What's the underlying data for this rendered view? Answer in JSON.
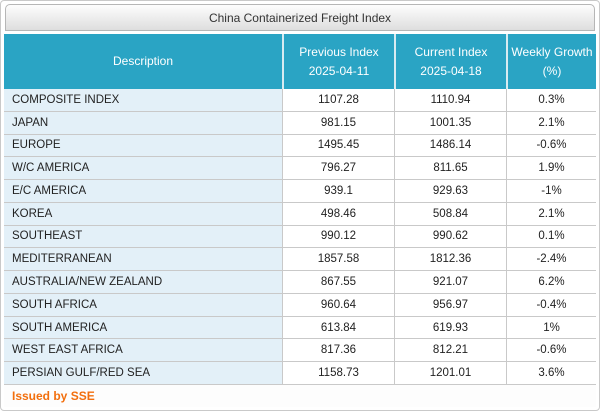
{
  "title": "China Containerized Freight Index",
  "table": {
    "columns": [
      {
        "label": "Description",
        "sub": ""
      },
      {
        "label": "Previous Index",
        "sub": "2025-04-11"
      },
      {
        "label": "Current Index",
        "sub": "2025-04-18"
      },
      {
        "label": "Weekly Growth",
        "sub": "(%)"
      }
    ],
    "rows": [
      {
        "desc": "COMPOSITE INDEX",
        "prev": "1107.28",
        "curr": "1110.94",
        "growth": "0.3%"
      },
      {
        "desc": "JAPAN",
        "prev": "981.15",
        "curr": "1001.35",
        "growth": "2.1%"
      },
      {
        "desc": "EUROPE",
        "prev": "1495.45",
        "curr": "1486.14",
        "growth": "-0.6%"
      },
      {
        "desc": "W/C AMERICA",
        "prev": "796.27",
        "curr": "811.65",
        "growth": "1.9%"
      },
      {
        "desc": "E/C AMERICA",
        "prev": "939.1",
        "curr": "929.63",
        "growth": "-1%"
      },
      {
        "desc": "KOREA",
        "prev": "498.46",
        "curr": "508.84",
        "growth": "2.1%"
      },
      {
        "desc": "SOUTHEAST",
        "prev": "990.12",
        "curr": "990.62",
        "growth": "0.1%"
      },
      {
        "desc": "MEDITERRANEAN",
        "prev": "1857.58",
        "curr": "1812.36",
        "growth": "-2.4%"
      },
      {
        "desc": "AUSTRALIA/NEW ZEALAND",
        "prev": "867.55",
        "curr": "921.07",
        "growth": "6.2%"
      },
      {
        "desc": "SOUTH AFRICA",
        "prev": "960.64",
        "curr": "956.97",
        "growth": "-0.4%"
      },
      {
        "desc": "SOUTH AMERICA",
        "prev": "613.84",
        "curr": "619.93",
        "growth": "1%"
      },
      {
        "desc": "WEST EAST AFRICA",
        "prev": "817.36",
        "curr": "812.21",
        "growth": "-0.6%"
      },
      {
        "desc": "PERSIAN GULF/RED SEA",
        "prev": "1158.73",
        "curr": "1201.01",
        "growth": "3.6%"
      }
    ]
  },
  "footer": {
    "issued_by": "Issued by SSE"
  },
  "theme": {
    "header_bg": "#2aa4c4",
    "header_text": "#ffffff",
    "description_cell_bg": "#e3f0f8",
    "border_color": "#c9c9c9",
    "footer_text_color": "#f26f0e"
  }
}
